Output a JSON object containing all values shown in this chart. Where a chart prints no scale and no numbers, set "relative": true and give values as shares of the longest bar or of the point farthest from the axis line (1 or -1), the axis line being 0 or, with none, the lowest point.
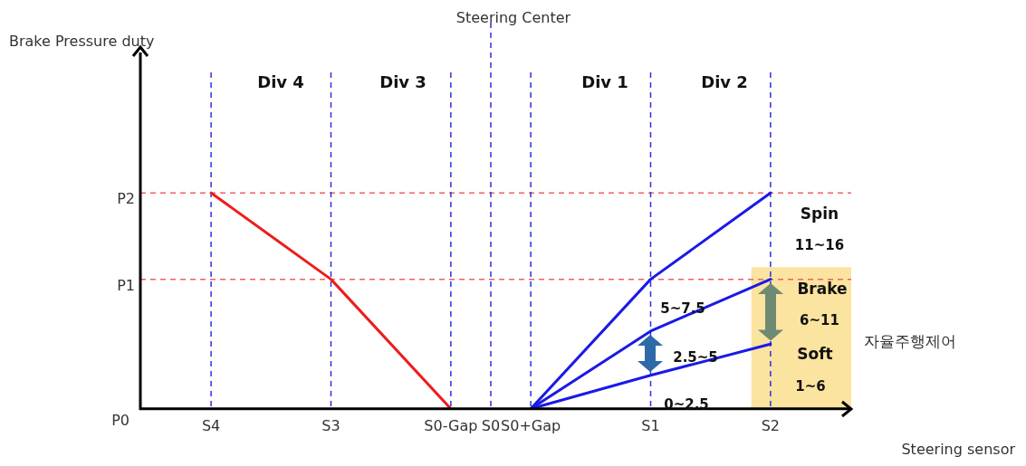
{
  "chart_data": {
    "type": "line",
    "relative": true,
    "categories": [
      "S4",
      null,
      null,
      "S3",
      null,
      null,
      "S0-Gap",
      "S0",
      "S0+Gap",
      null,
      null,
      "S1",
      null,
      null,
      "S2"
    ],
    "grid": false,
    "legend": false,
    "marker": "none",
    "line_style": "solid",
    "series": [
      {
        "color": "#ee1c1c",
        "x": [
          "S4",
          "S3",
          "S0-Gap"
        ],
        "values": [
          1,
          0.6,
          0
        ]
      },
      {
        "color": "#1a1ae6",
        "x": [
          "S0+Gap",
          "S1",
          "S2"
        ],
        "values": [
          0,
          0.6,
          1
        ]
      },
      {
        "color": "#1a1ae6",
        "x": [
          "S0+Gap",
          "S1",
          "S2"
        ],
        "values": [
          0,
          0.36,
          0.6
        ]
      },
      {
        "color": "#1a1ae6",
        "x": [
          "S0+Gap",
          "S1",
          "S2"
        ],
        "values": [
          0,
          0.155,
          0.3
        ]
      }
    ],
    "ref_lines": [
      {
        "axis": "y",
        "value": 0.6,
        "label": "P1",
        "color": "#f06060",
        "line_style": "dashed"
      },
      {
        "axis": "y",
        "value": 1,
        "label": "P2",
        "color": "#f06060",
        "line_style": "dashed"
      },
      {
        "axis": "x",
        "value": "S4",
        "color": "#3030e0",
        "line_style": "dashed"
      },
      {
        "axis": "x",
        "value": "S3",
        "color": "#3030e0",
        "line_style": "dashed"
      },
      {
        "axis": "x",
        "value": "S0-Gap",
        "color": "#3030e0",
        "line_style": "dashed"
      },
      {
        "axis": "x",
        "value": "S0",
        "label": "Steering Center",
        "color": "#3030e0",
        "line_style": "dashed"
      },
      {
        "axis": "x",
        "value": "S0+Gap",
        "color": "#3030e0",
        "line_style": "dashed"
      },
      {
        "axis": "x",
        "value": "S1",
        "color": "#3030e0",
        "line_style": "dashed"
      },
      {
        "axis": "x",
        "value": "S2",
        "color": "#3030e0",
        "line_style": "dashed"
      }
    ],
    "bands": [
      {
        "axis": "x",
        "from": "S2",
        "to": "S2",
        "label": "자율주행제어",
        "color": "#fbe3a0"
      }
    ],
    "annotations": [
      "Div 4",
      "Div 3",
      "Div 1",
      "Div 2",
      "Spin",
      "11~16",
      "Brake",
      "6~11",
      "Soft",
      "1~6",
      "5~7.5",
      "2.5~5",
      "0~2.5",
      "P0",
      "Brake Pressure duty",
      "Steering sensor"
    ]
  }
}
